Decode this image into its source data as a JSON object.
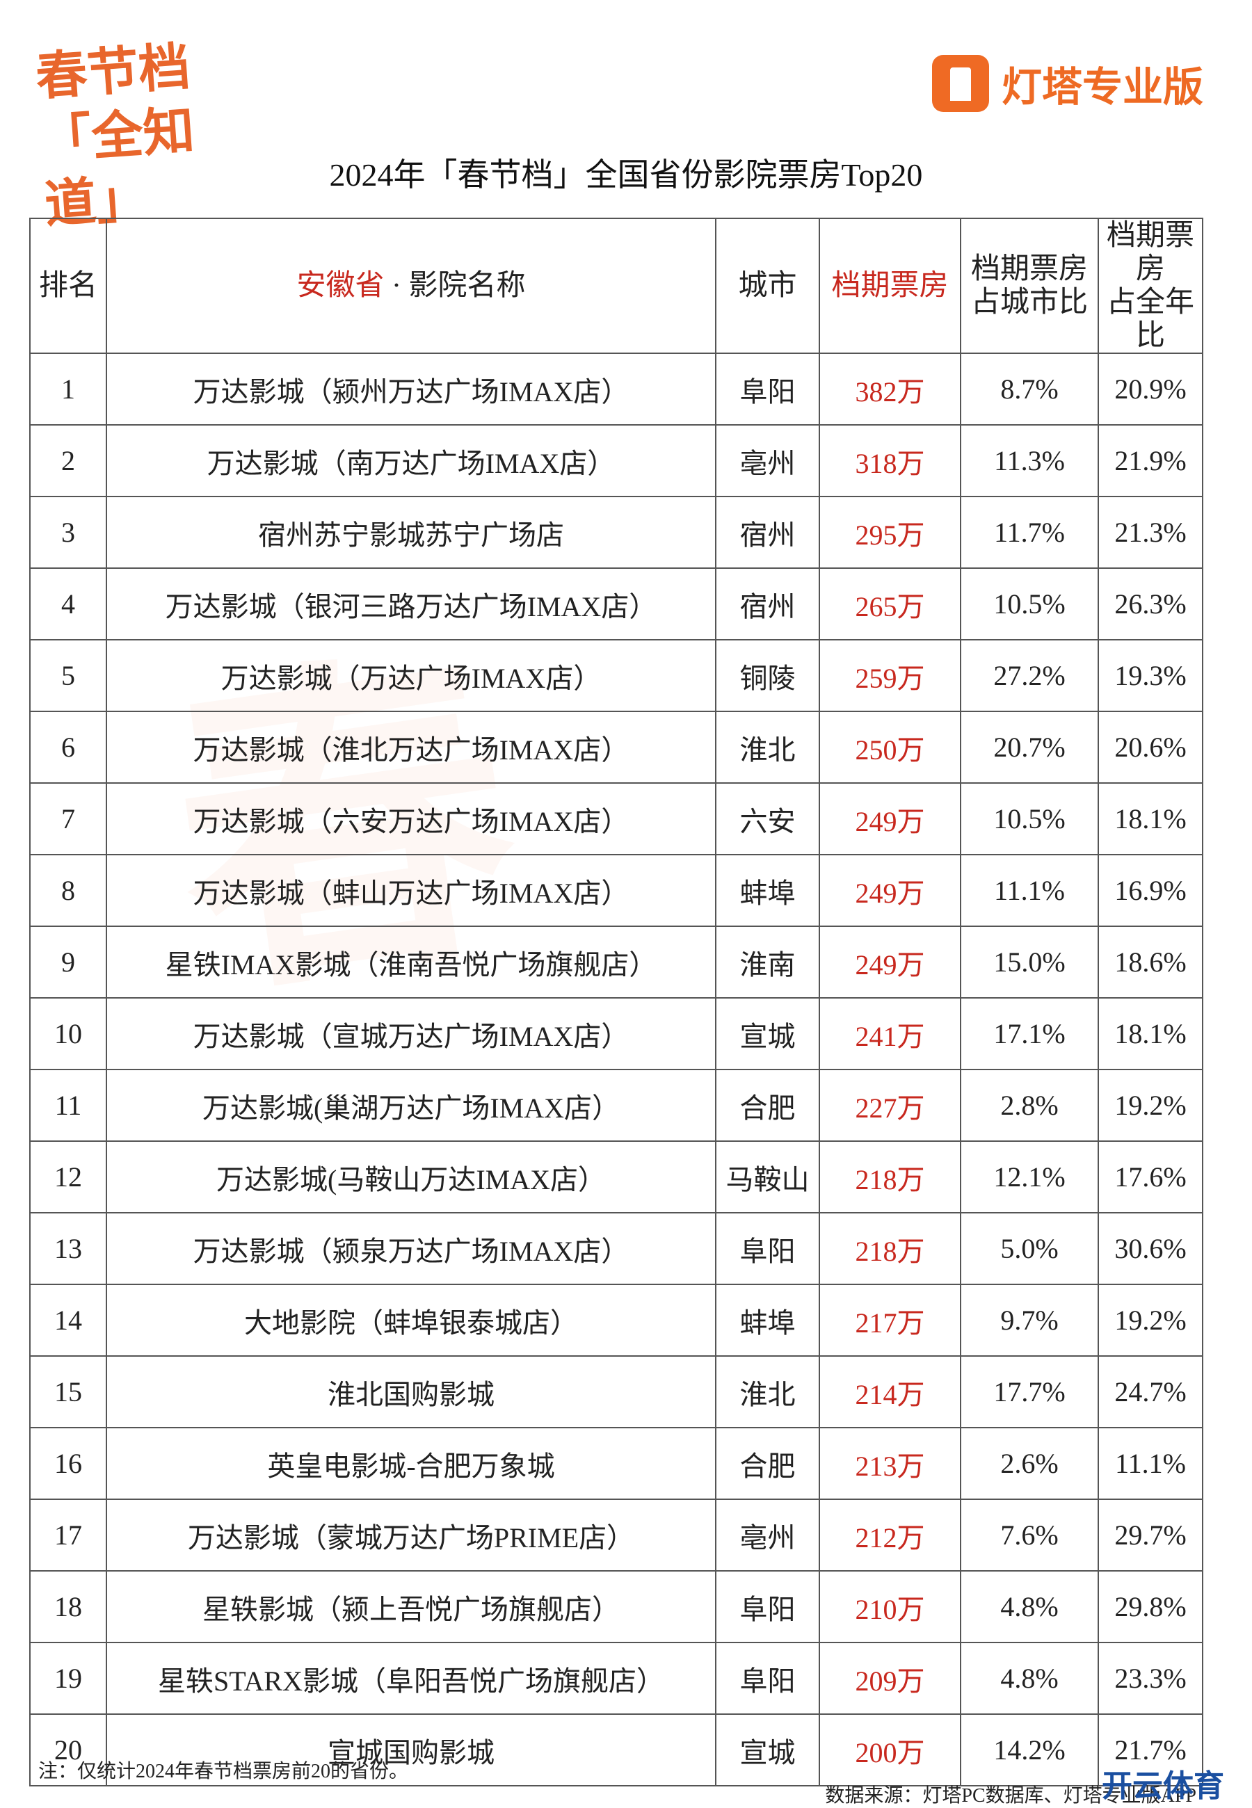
{
  "logo": {
    "line1": "春节档",
    "line2": "「全知道」"
  },
  "brand": "灯塔专业版",
  "title": "2024年「春节档」全国省份影院票房Top20",
  "table": {
    "header": {
      "rank": "排名",
      "province": "安徽省",
      "name": " · 影院名称",
      "city": "城市",
      "box_office": "档期票房",
      "city_share": [
        "档期票房",
        "占城市比"
      ],
      "year_share": [
        "档期票房",
        "占全年比"
      ]
    },
    "rows": [
      [
        "1",
        "万达影城（颍州万达广场IMAX店）",
        "阜阳",
        "382万",
        "8.7%",
        "20.9%"
      ],
      [
        "2",
        "万达影城（南万达广场IMAX店）",
        "亳州",
        "318万",
        "11.3%",
        "21.9%"
      ],
      [
        "3",
        "宿州苏宁影城苏宁广场店",
        "宿州",
        "295万",
        "11.7%",
        "21.3%"
      ],
      [
        "4",
        "万达影城（银河三路万达广场IMAX店）",
        "宿州",
        "265万",
        "10.5%",
        "26.3%"
      ],
      [
        "5",
        "万达影城（万达广场IMAX店）",
        "铜陵",
        "259万",
        "27.2%",
        "19.3%"
      ],
      [
        "6",
        "万达影城（淮北万达广场IMAX店）",
        "淮北",
        "250万",
        "20.7%",
        "20.6%"
      ],
      [
        "7",
        "万达影城（六安万达广场IMAX店）",
        "六安",
        "249万",
        "10.5%",
        "18.1%"
      ],
      [
        "8",
        "万达影城（蚌山万达广场IMAX店）",
        "蚌埠",
        "249万",
        "11.1%",
        "16.9%"
      ],
      [
        "9",
        "星铁IMAX影城（淮南吾悦广场旗舰店）",
        "淮南",
        "249万",
        "15.0%",
        "18.6%"
      ],
      [
        "10",
        "万达影城（宣城万达广场IMAX店）",
        "宣城",
        "241万",
        "17.1%",
        "18.1%"
      ],
      [
        "11",
        "万达影城(巢湖万达广场IMAX店）",
        "合肥",
        "227万",
        "2.8%",
        "19.2%"
      ],
      [
        "12",
        "万达影城(马鞍山万达IMAX店）",
        "马鞍山",
        "218万",
        "12.1%",
        "17.6%"
      ],
      [
        "13",
        "万达影城（颍泉万达广场IMAX店）",
        "阜阳",
        "218万",
        "5.0%",
        "30.6%"
      ],
      [
        "14",
        "大地影院（蚌埠银泰城店）",
        "蚌埠",
        "217万",
        "9.7%",
        "19.2%"
      ],
      [
        "15",
        "淮北国购影城",
        "淮北",
        "214万",
        "17.7%",
        "24.7%"
      ],
      [
        "16",
        "英皇电影城-合肥万象城",
        "合肥",
        "213万",
        "2.6%",
        "11.1%"
      ],
      [
        "17",
        "万达影城（蒙城万达广场PRIME店）",
        "亳州",
        "212万",
        "7.6%",
        "29.7%"
      ],
      [
        "18",
        "星轶影城（颍上吾悦广场旗舰店）",
        "阜阳",
        "210万",
        "4.8%",
        "29.8%"
      ],
      [
        "19",
        "星轶STARX影城（阜阳吾悦广场旗舰店）",
        "阜阳",
        "209万",
        "4.8%",
        "23.3%"
      ],
      [
        "20",
        "宣城国购影城",
        "宣城",
        "200万",
        "14.2%",
        "21.7%"
      ]
    ]
  },
  "note": "注：仅统计2024年春节档票房前20的省份。",
  "source": "数据来源：灯塔PC数据库、灯塔专业版APP",
  "watermark": "开云体育"
}
